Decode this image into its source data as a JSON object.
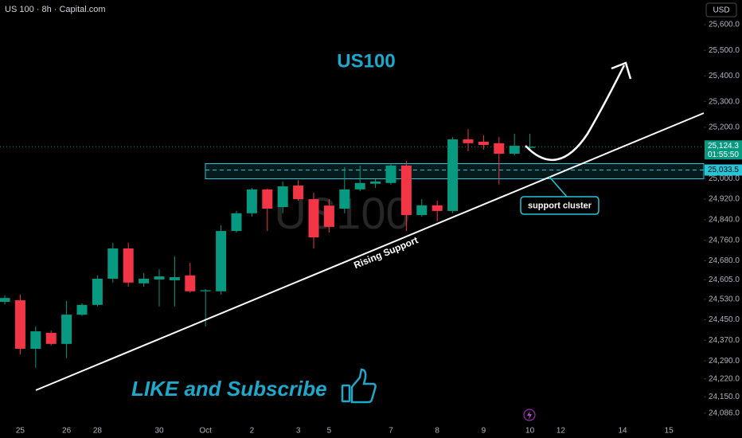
{
  "chart_data": {
    "type": "candlestick",
    "title": "US 100 · 8h · Capital.com",
    "currency": "USD",
    "watermark": "US100",
    "annotations": [
      "US100",
      "Rising Support",
      "support cluster",
      "LIKE and Subscribe"
    ],
    "categories": [
      null,
      "25",
      null,
      null,
      "26",
      null,
      "28",
      null,
      null,
      null,
      "30",
      null,
      null,
      "Oct",
      null,
      null,
      "2",
      null,
      null,
      "3",
      null,
      "5",
      null,
      null,
      null,
      "7",
      null,
      null,
      "8",
      null,
      null,
      "9",
      null,
      null,
      "10",
      null,
      "12",
      null,
      null,
      null,
      "14",
      null,
      null,
      "15",
      null
    ],
    "open": [
      24520,
      24526,
      24337,
      24399,
      24356,
      24470,
      24508,
      24610,
      24728,
      24592,
      24607,
      24604,
      24623,
      24561,
      24561,
      24796,
      24865,
      24958,
      24889,
      24973,
      24920,
      24895,
      24883,
      24958,
      24980,
      24983,
      25051,
      24858,
      24896,
      24874,
      25153,
      25144,
      25138,
      25097,
      25120,
      null,
      null,
      null,
      null,
      null,
      null,
      null,
      null,
      null,
      null
    ],
    "high": [
      24545,
      24548,
      24424,
      24408,
      24523,
      24515,
      24623,
      24750,
      24750,
      24632,
      24647,
      24697,
      24672,
      24570,
      24818,
      24874,
      24964,
      24961,
      24989,
      24995,
      24945,
      24920,
      25045,
      25051,
      24998,
      25060,
      25069,
      24920,
      24914,
      25162,
      25193,
      25169,
      25162,
      25175,
      25175,
      null,
      null,
      null,
      null,
      null,
      null,
      null,
      null,
      null,
      null
    ],
    "low": [
      24510,
      24315,
      24263,
      24350,
      24300,
      24465,
      24502,
      24595,
      24579,
      24579,
      24502,
      24502,
      24555,
      24424,
      24548,
      24790,
      24852,
      24796,
      24865,
      24914,
      24728,
      24790,
      24865,
      24951,
      24964,
      24977,
      24796,
      24852,
      24834,
      24865,
      25107,
      25113,
      24977,
      25091,
      25107,
      null,
      null,
      null,
      null,
      null,
      null,
      null,
      null,
      null,
      null
    ],
    "close": [
      24535,
      24337,
      24405,
      24356,
      24470,
      24508,
      24610,
      24728,
      24595,
      24610,
      24619,
      24616,
      24561,
      24565,
      24796,
      24865,
      24958,
      24883,
      24970,
      24920,
      24771,
      24812,
      24958,
      24983,
      24989,
      25051,
      24858,
      24896,
      24874,
      25153,
      25138,
      25131,
      25097,
      25128,
      25124.3,
      null,
      null,
      null,
      null,
      null,
      null,
      null,
      null,
      null,
      null
    ],
    "up_color": "#089981",
    "down_color": "#f23645",
    "ylim": [
      24039,
      25696
    ],
    "yticks": [
      {
        "value": 25600,
        "label": "25,600.0"
      },
      {
        "value": 25500,
        "label": "25,500.0"
      },
      {
        "value": 25400,
        "label": "25,400.0"
      },
      {
        "value": 25300,
        "label": "25,300.0"
      },
      {
        "value": 25200,
        "label": "25,200.0"
      },
      {
        "value": 25000,
        "label": "25,000.0"
      },
      {
        "value": 24920,
        "label": "24,920.0"
      },
      {
        "value": 24840,
        "label": "24,840.0"
      },
      {
        "value": 24760,
        "label": "24,760.0"
      },
      {
        "value": 24680,
        "label": "24,680.0"
      },
      {
        "value": 24605,
        "label": "24,605.0"
      },
      {
        "value": 24530,
        "label": "24,530.0"
      },
      {
        "value": 24450,
        "label": "24,450.0"
      },
      {
        "value": 24370,
        "label": "24,370.0"
      },
      {
        "value": 24290,
        "label": "24,290.0"
      },
      {
        "value": 24220,
        "label": "24,220.0"
      },
      {
        "value": 24150,
        "label": "24,150.0"
      },
      {
        "value": 24086,
        "label": "24,086.0"
      }
    ],
    "last_price": {
      "value": 25124.3,
      "label": "25,124.3"
    },
    "countdown": "01:55:50",
    "zone_price": {
      "value": 25033.5,
      "label": "25,033.5"
    }
  }
}
